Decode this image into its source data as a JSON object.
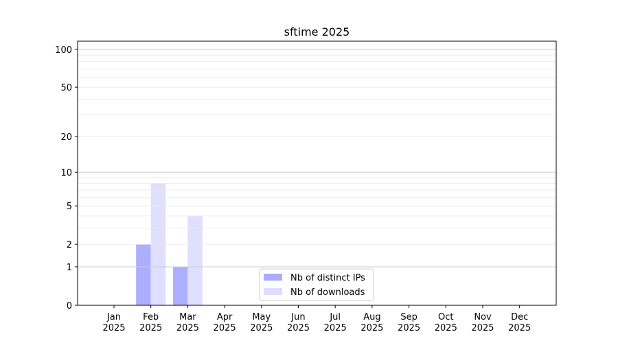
{
  "chart_data": {
    "type": "bar",
    "title": "sftime 2025",
    "xlabel": "",
    "ylabel": "",
    "yscale": "log(1+y)",
    "ylim": [
      0,
      116
    ],
    "yticks": [
      0,
      1,
      2,
      5,
      10,
      20,
      50,
      100
    ],
    "grid": true,
    "legend_position": "bottom-center",
    "categories": [
      "Jan\n2025",
      "Feb\n2025",
      "Mar\n2025",
      "Apr\n2025",
      "May\n2025",
      "Jun\n2025",
      "Jul\n2025",
      "Aug\n2025",
      "Sep\n2025",
      "Oct\n2025",
      "Nov\n2025",
      "Dec\n2025"
    ],
    "series": [
      {
        "name": "Nb of distinct IPs",
        "color": "#aaaaff",
        "values": [
          0,
          2,
          1,
          0,
          0,
          0,
          0,
          0,
          0,
          0,
          0,
          0
        ]
      },
      {
        "name": "Nb of downloads",
        "color": "#ddddff",
        "values": [
          0,
          8,
          4,
          0,
          0,
          0,
          0,
          0,
          0,
          0,
          0,
          0
        ]
      }
    ]
  }
}
